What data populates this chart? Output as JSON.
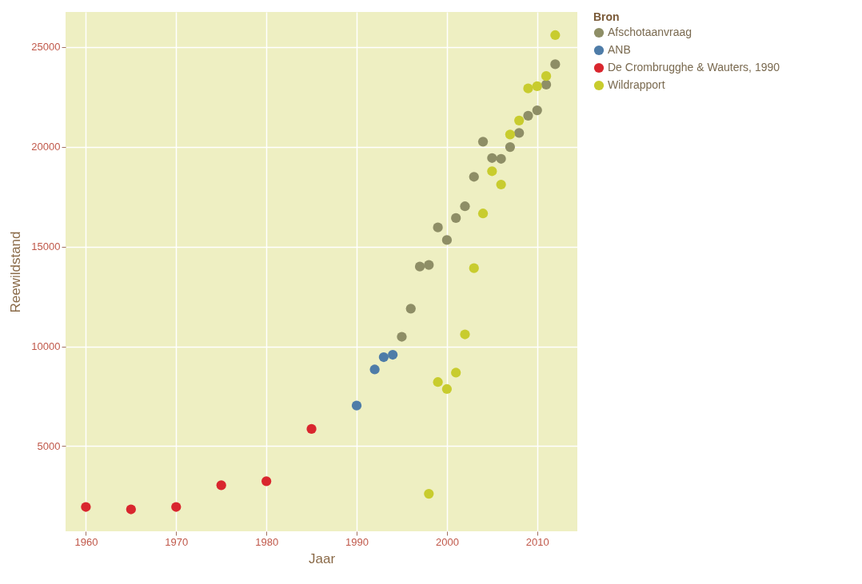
{
  "chart_data": {
    "type": "scatter",
    "xlabel": "Jaar",
    "ylabel": "Reewildstand",
    "legend_title": "Bron",
    "xlim": [
      1957.75,
      2014.45
    ],
    "xticks": [
      1960,
      1970,
      1980,
      1990,
      2000,
      2010
    ],
    "ylim": [
      730,
      26760
    ],
    "yticks": [
      5000,
      10000,
      15000,
      20000,
      25000
    ],
    "grid": true,
    "legend": "right",
    "marker": "circle",
    "series": [
      {
        "name": "Afschotaanvraag",
        "color": "#8e8e66",
        "x": [
          1995,
          1996,
          1997,
          1998,
          1999,
          2000,
          2001,
          2002,
          2003,
          2004,
          2005,
          2006,
          2007,
          2008,
          2009,
          2010,
          2011,
          2012
        ],
        "values": [
          10480,
          11890,
          14000,
          14080,
          15960,
          15330,
          16430,
          17020,
          18500,
          20260,
          19440,
          19400,
          19990,
          20700,
          21560,
          21830,
          23120,
          24140
        ]
      },
      {
        "name": "ANB",
        "color": "#4e7ca8",
        "x": [
          1990,
          1992,
          1993,
          1994
        ],
        "values": [
          7030,
          8840,
          9460,
          9580
        ]
      },
      {
        "name": "De Crombrugghe & Wauters, 1990",
        "color": "#d9262e",
        "x": [
          1960,
          1965,
          1970,
          1975,
          1980,
          1985
        ],
        "values": [
          1950,
          1830,
          1950,
          3040,
          3240,
          5860
        ]
      },
      {
        "name": "Wildrapport",
        "color": "#c8cc2e",
        "x": [
          1998,
          1999,
          2000,
          2001,
          2002,
          2003,
          2004,
          2005,
          2006,
          2007,
          2008,
          2009,
          2010,
          2011,
          2012
        ],
        "values": [
          2610,
          8210,
          7860,
          8680,
          10600,
          13920,
          16660,
          18780,
          18110,
          20620,
          21320,
          22930,
          23040,
          23550,
          25600
        ]
      }
    ]
  }
}
